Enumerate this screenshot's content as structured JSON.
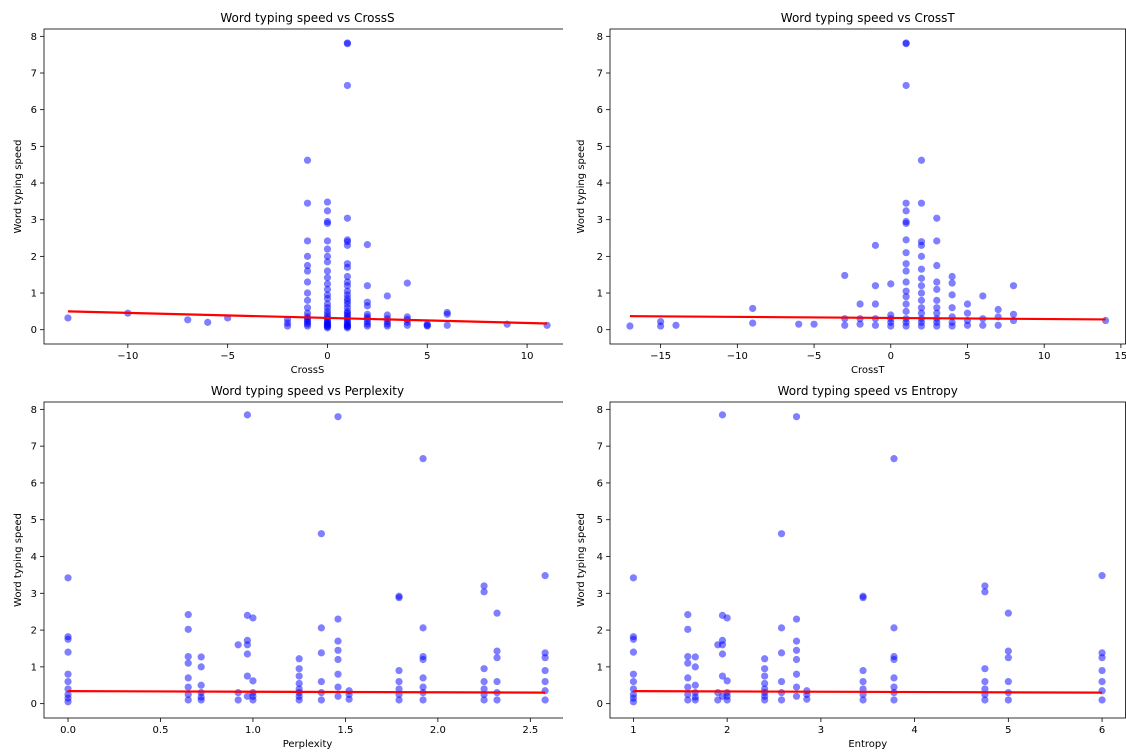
{
  "colors": {
    "point": "#0000ff",
    "point_opacity": 0.5,
    "fit": "#ff0000",
    "frame": "#000000"
  },
  "chart_data": [
    {
      "type": "scatter",
      "title": "Word typing speed vs CrossS",
      "xlabel": "CrossS",
      "ylabel": "Word typing speed",
      "xlim": [
        -14.2,
        12.2
      ],
      "ylim": [
        -0.39,
        8.2
      ],
      "xticks": [
        -10,
        -5,
        0,
        5,
        10
      ],
      "xtick_labels": [
        "−10",
        "−5",
        "0",
        "5",
        "10"
      ],
      "yticks": [
        0,
        1,
        2,
        3,
        4,
        5,
        6,
        7,
        8
      ],
      "ytick_labels": [
        "0",
        "1",
        "2",
        "3",
        "4",
        "5",
        "6",
        "7",
        "8"
      ],
      "fit_line": {
        "x": [
          -13,
          11
        ],
        "y": [
          0.5,
          0.17
        ]
      },
      "points": {
        "x": [
          -13,
          -10,
          -7,
          -6,
          -5,
          -2,
          -2,
          -2,
          -1,
          -1,
          -1,
          -1,
          -1,
          -1,
          -1,
          -1,
          -1,
          -1,
          -1,
          -1,
          -1,
          -1,
          -1,
          -1,
          -1,
          0,
          0,
          0,
          0,
          0,
          0,
          0,
          0,
          0,
          0,
          0,
          0,
          0,
          0,
          0,
          0,
          0,
          0,
          0,
          0,
          0,
          0,
          0,
          0,
          0,
          0,
          0,
          0,
          1,
          1,
          1,
          1,
          1,
          1,
          1,
          1,
          1,
          1,
          1,
          1,
          1,
          1,
          1,
          1,
          1,
          1,
          1,
          1,
          1,
          1,
          1,
          1,
          1,
          1,
          1,
          1,
          1,
          1,
          2,
          2,
          2,
          2,
          2,
          2,
          2,
          2,
          2,
          2,
          3,
          3,
          3,
          3,
          3,
          3,
          4,
          4,
          4,
          4,
          4,
          5,
          5,
          5,
          6,
          6,
          6,
          9,
          11
        ],
        "y": [
          0.32,
          0.45,
          0.27,
          0.2,
          0.32,
          0.1,
          0.18,
          0.28,
          4.62,
          3.45,
          2.42,
          2.0,
          1.75,
          1.6,
          1.3,
          1.0,
          0.8,
          0.6,
          0.45,
          0.35,
          0.3,
          0.25,
          0.2,
          0.15,
          0.1,
          3.48,
          3.24,
          2.95,
          2.9,
          2.42,
          2.2,
          2.0,
          1.85,
          1.6,
          1.42,
          1.25,
          1.1,
          0.95,
          0.85,
          0.7,
          0.6,
          0.5,
          0.42,
          0.35,
          0.3,
          0.25,
          0.2,
          0.15,
          0.1,
          0.08,
          0.05,
          0.12,
          0.18,
          7.82,
          7.8,
          6.66,
          3.04,
          2.45,
          2.4,
          2.3,
          1.8,
          1.7,
          1.45,
          1.3,
          1.2,
          1.05,
          0.95,
          0.85,
          0.78,
          0.7,
          0.6,
          0.5,
          0.45,
          0.4,
          0.35,
          0.3,
          0.25,
          0.2,
          0.15,
          0.12,
          0.1,
          0.08,
          0.05,
          2.32,
          1.2,
          0.75,
          0.65,
          0.42,
          0.35,
          0.3,
          0.22,
          0.15,
          0.1,
          0.92,
          0.4,
          0.3,
          0.22,
          0.15,
          0.1,
          1.27,
          0.35,
          0.28,
          0.2,
          0.12,
          0.15,
          0.1,
          0.12,
          0.47,
          0.42,
          0.12,
          0.15,
          0.12
        ]
      }
    },
    {
      "type": "scatter",
      "title": "Word typing speed vs CrossT",
      "xlabel": "CrossT",
      "ylabel": "Word typing speed",
      "xlim": [
        -18.3,
        15.3
      ],
      "ylim": [
        -0.39,
        8.2
      ],
      "xticks": [
        -15,
        -10,
        -5,
        0,
        5,
        10,
        15
      ],
      "xtick_labels": [
        "−15",
        "−10",
        "−5",
        "0",
        "5",
        "10",
        "15"
      ],
      "yticks": [
        0,
        1,
        2,
        3,
        4,
        5,
        6,
        7,
        8
      ],
      "ytick_labels": [
        "0",
        "1",
        "2",
        "3",
        "4",
        "5",
        "6",
        "7",
        "8"
      ],
      "fit_line": {
        "x": [
          -17,
          14
        ],
        "y": [
          0.37,
          0.28
        ]
      },
      "points": {
        "x": [
          -17,
          -15,
          -15,
          -14,
          -9,
          -9,
          -6,
          -5,
          -3,
          -3,
          -3,
          -2,
          -2,
          -2,
          -1,
          -1,
          -1,
          -1,
          -1,
          0,
          0,
          0,
          0,
          0,
          1,
          1,
          1,
          1,
          1,
          1,
          1,
          1,
          1,
          1,
          1,
          1,
          1,
          1,
          1,
          1,
          1,
          1,
          1,
          2,
          2,
          2,
          2,
          2,
          2,
          2,
          2,
          2,
          2,
          2,
          2,
          2,
          2,
          2,
          3,
          3,
          3,
          3,
          3,
          3,
          3,
          3,
          3,
          3,
          3,
          4,
          4,
          4,
          4,
          4,
          4,
          4,
          5,
          5,
          5,
          5,
          6,
          6,
          6,
          7,
          7,
          7,
          8,
          8,
          8,
          14
        ],
        "y": [
          0.1,
          0.22,
          0.1,
          0.12,
          0.58,
          0.18,
          0.15,
          0.15,
          1.48,
          0.3,
          0.12,
          0.7,
          0.3,
          0.15,
          2.3,
          1.2,
          0.7,
          0.3,
          0.12,
          1.25,
          0.4,
          0.3,
          0.2,
          0.1,
          7.82,
          7.8,
          6.66,
          3.45,
          3.24,
          2.95,
          2.9,
          2.45,
          2.1,
          1.8,
          1.6,
          1.3,
          1.05,
          0.9,
          0.7,
          0.5,
          0.3,
          0.2,
          0.1,
          4.62,
          3.45,
          2.4,
          2.3,
          2.0,
          1.65,
          1.4,
          1.2,
          1.0,
          0.8,
          0.6,
          0.45,
          0.3,
          0.2,
          0.1,
          3.04,
          2.42,
          1.75,
          1.3,
          1.1,
          0.8,
          0.6,
          0.45,
          0.3,
          0.2,
          0.1,
          1.45,
          1.27,
          0.95,
          0.6,
          0.35,
          0.2,
          0.1,
          0.7,
          0.45,
          0.25,
          0.12,
          0.92,
          0.3,
          0.12,
          0.55,
          0.35,
          0.12,
          1.2,
          0.42,
          0.25,
          0.25
        ]
      }
    },
    {
      "type": "scatter",
      "title": "Word typing speed vs Perplexity",
      "xlabel": "Perplexity",
      "ylabel": "Word typing speed",
      "xlim": [
        -0.13,
        2.72
      ],
      "ylim": [
        -0.39,
        8.2
      ],
      "xticks": [
        0,
        0.5,
        1,
        1.5,
        2,
        2.5
      ],
      "xtick_labels": [
        "0.0",
        "0.5",
        "1.0",
        "1.5",
        "2.0",
        "2.5"
      ],
      "yticks": [
        0,
        1,
        2,
        3,
        4,
        5,
        6,
        7,
        8
      ],
      "ytick_labels": [
        "0",
        "1",
        "2",
        "3",
        "4",
        "5",
        "6",
        "7",
        "8"
      ],
      "fit_line": {
        "x": [
          0,
          2.58
        ],
        "y": [
          0.34,
          0.3
        ]
      },
      "points": {
        "x": [
          0,
          0,
          0,
          0,
          0,
          0,
          0,
          0,
          0,
          0,
          0.65,
          0.65,
          0.65,
          0.65,
          0.65,
          0.65,
          0.65,
          0.65,
          0.72,
          0.72,
          0.72,
          0.72,
          0.72,
          0.72,
          0.92,
          0.92,
          0.92,
          0.97,
          0.97,
          0.97,
          0.97,
          0.97,
          0.97,
          0.97,
          1,
          1,
          1,
          1,
          1,
          1.25,
          1.25,
          1.25,
          1.25,
          1.25,
          1.25,
          1.25,
          1.25,
          1.37,
          1.37,
          1.37,
          1.37,
          1.37,
          1.37,
          1.46,
          1.46,
          1.46,
          1.46,
          1.46,
          1.46,
          1.46,
          1.46,
          1.52,
          1.52,
          1.52,
          1.79,
          1.79,
          1.79,
          1.79,
          1.79,
          1.79,
          1.79,
          1.92,
          1.92,
          1.92,
          1.92,
          1.92,
          1.92,
          1.92,
          1.92,
          2.25,
          2.25,
          2.25,
          2.25,
          2.25,
          2.25,
          2.25,
          2.32,
          2.32,
          2.32,
          2.32,
          2.32,
          2.32,
          2.58,
          2.58,
          2.58,
          2.58,
          2.58,
          2.58,
          2.58
        ],
        "y": [
          3.42,
          1.82,
          1.75,
          1.4,
          0.8,
          0.6,
          0.4,
          0.25,
          0.15,
          0.05,
          2.42,
          2.02,
          1.28,
          1.1,
          0.7,
          0.45,
          0.25,
          0.1,
          1.27,
          1.0,
          0.5,
          0.3,
          0.18,
          0.1,
          1.6,
          0.3,
          0.1,
          7.85,
          2.4,
          1.72,
          1.6,
          1.35,
          0.75,
          0.2,
          2.33,
          0.62,
          0.3,
          0.2,
          0.1,
          1.22,
          0.95,
          0.75,
          0.55,
          0.4,
          0.3,
          0.2,
          0.1,
          4.62,
          2.06,
          1.38,
          0.6,
          0.3,
          0.1,
          7.8,
          2.3,
          1.7,
          1.45,
          1.2,
          0.8,
          0.45,
          0.2,
          0.35,
          0.25,
          0.12,
          2.92,
          2.88,
          0.9,
          0.6,
          0.4,
          0.25,
          0.1,
          6.66,
          2.06,
          1.28,
          1.2,
          0.7,
          0.45,
          0.3,
          0.1,
          3.2,
          3.04,
          0.95,
          0.6,
          0.4,
          0.25,
          0.1,
          2.46,
          1.43,
          1.25,
          0.6,
          0.3,
          0.1,
          3.48,
          1.38,
          1.25,
          0.9,
          0.6,
          0.35,
          0.1
        ]
      }
    },
    {
      "type": "scatter",
      "title": "Word typing speed vs Entropy",
      "xlabel": "Entropy",
      "ylabel": "Word typing speed",
      "xlim": [
        0.75,
        6.25
      ],
      "ylim": [
        -0.39,
        8.2
      ],
      "xticks": [
        1,
        2,
        3,
        4,
        5,
        6
      ],
      "xtick_labels": [
        "1",
        "2",
        "3",
        "4",
        "5",
        "6"
      ],
      "yticks": [
        0,
        1,
        2,
        3,
        4,
        5,
        6,
        7,
        8
      ],
      "ytick_labels": [
        "0",
        "1",
        "2",
        "3",
        "4",
        "5",
        "6",
        "7",
        "8"
      ],
      "fit_line": {
        "x": [
          1,
          6
        ],
        "y": [
          0.34,
          0.3
        ]
      },
      "points": {
        "x": [
          1,
          1,
          1,
          1,
          1,
          1,
          1,
          1,
          1,
          1,
          1.58,
          1.58,
          1.58,
          1.58,
          1.58,
          1.58,
          1.58,
          1.58,
          1.66,
          1.66,
          1.66,
          1.66,
          1.66,
          1.66,
          1.9,
          1.9,
          1.9,
          1.95,
          1.95,
          1.95,
          1.95,
          1.95,
          1.95,
          1.95,
          2,
          2,
          2,
          2,
          2,
          2.4,
          2.4,
          2.4,
          2.4,
          2.4,
          2.4,
          2.4,
          2.4,
          2.58,
          2.58,
          2.58,
          2.58,
          2.58,
          2.58,
          2.74,
          2.74,
          2.74,
          2.74,
          2.74,
          2.74,
          2.74,
          2.74,
          2.85,
          2.85,
          2.85,
          3.45,
          3.45,
          3.45,
          3.45,
          3.45,
          3.45,
          3.45,
          3.78,
          3.78,
          3.78,
          3.78,
          3.78,
          3.78,
          3.78,
          3.78,
          4.75,
          4.75,
          4.75,
          4.75,
          4.75,
          4.75,
          4.75,
          5,
          5,
          5,
          5,
          5,
          5,
          6,
          6,
          6,
          6,
          6,
          6,
          6
        ],
        "y": [
          3.42,
          1.82,
          1.75,
          1.4,
          0.8,
          0.6,
          0.4,
          0.25,
          0.15,
          0.05,
          2.42,
          2.02,
          1.28,
          1.1,
          0.7,
          0.45,
          0.25,
          0.1,
          1.27,
          1.0,
          0.5,
          0.3,
          0.18,
          0.1,
          1.6,
          0.3,
          0.1,
          7.85,
          2.4,
          1.72,
          1.6,
          1.35,
          0.75,
          0.2,
          2.33,
          0.62,
          0.3,
          0.2,
          0.1,
          1.22,
          0.95,
          0.75,
          0.55,
          0.4,
          0.3,
          0.2,
          0.1,
          4.62,
          2.06,
          1.38,
          0.6,
          0.3,
          0.1,
          7.8,
          2.3,
          1.7,
          1.45,
          1.2,
          0.8,
          0.45,
          0.2,
          0.35,
          0.25,
          0.12,
          2.92,
          2.88,
          0.9,
          0.6,
          0.4,
          0.25,
          0.1,
          6.66,
          2.06,
          1.28,
          1.2,
          0.7,
          0.45,
          0.3,
          0.1,
          3.2,
          3.04,
          0.95,
          0.6,
          0.4,
          0.25,
          0.1,
          2.46,
          1.43,
          1.25,
          0.6,
          0.3,
          0.1,
          3.48,
          1.38,
          1.25,
          0.9,
          0.6,
          0.35,
          0.1
        ]
      }
    }
  ]
}
